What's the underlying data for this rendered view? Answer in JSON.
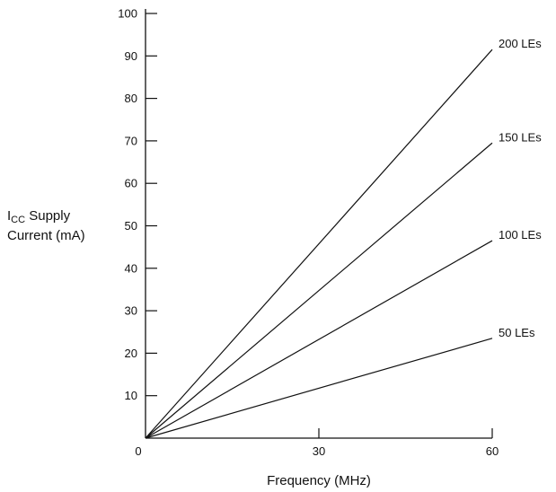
{
  "chart_data": {
    "type": "line",
    "xlabel": "Frequency (MHz)",
    "ylabel": {
      "prefix": "I",
      "subscript": "CC",
      "line1_rest": " Supply",
      "line2": "Current (mA)"
    },
    "xlim": [
      0,
      60
    ],
    "ylim": [
      0,
      100
    ],
    "x_ticks": [
      0,
      30,
      60
    ],
    "y_ticks": [
      10,
      20,
      30,
      40,
      50,
      60,
      70,
      80,
      90,
      100
    ],
    "x_tick_labels": [
      "0",
      "30",
      "60"
    ],
    "y_tick_labels": [
      "10",
      "20",
      "30",
      "40",
      "50",
      "60",
      "70",
      "80",
      "90",
      "100"
    ],
    "grid": false,
    "legend": "none",
    "series": [
      {
        "name": "200 LEs",
        "x": [
          0,
          60
        ],
        "y": [
          0,
          91.5
        ]
      },
      {
        "name": "150 LEs",
        "x": [
          0,
          60
        ],
        "y": [
          0,
          69.5
        ]
      },
      {
        "name": "100 LEs",
        "x": [
          0,
          60
        ],
        "y": [
          0,
          46.5
        ]
      },
      {
        "name": "50 LEs",
        "x": [
          0,
          60
        ],
        "y": [
          0,
          23.5
        ]
      }
    ]
  }
}
